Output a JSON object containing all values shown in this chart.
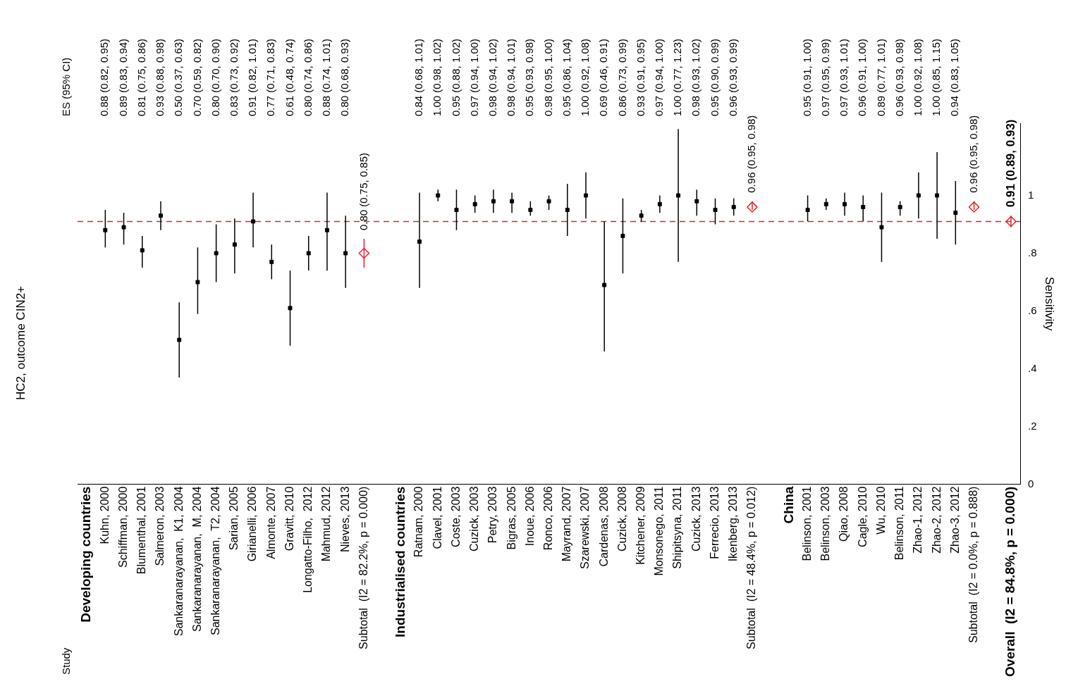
{
  "chart_data": {
    "type": "scatter",
    "title": "HC2, outcome CIN2+",
    "ylabel": "Sensitivity",
    "annotations": [
      "Study",
      "ES (95% CI)"
    ],
    "categories": [
      "Developing countries",
      "Kuhn, 2000",
      "Schiffman, 2000",
      "Blumenthal, 2001",
      "Salmeron, 2003",
      "Sankaranarayanan,  K1, 2004",
      "Sankaranarayanan,  M, 2004",
      "Sankaranarayanan,  T2, 2004",
      "Sarian, 2005",
      "Girianelli, 2006",
      "Almonte, 2007",
      "Gravitt, 2010",
      "Longatto-Filho,  2012",
      "Mahmud, 2012",
      "Nieves, 2013",
      "Subtotal  (I2 = 82.2%, p = 0.000)",
      null,
      "Industrialised countries",
      "Ratnam, 2000",
      "Clavel, 2001",
      "Coste, 2003",
      "Cuzick, 2003",
      "Petry, 2003",
      "Bigras, 2005",
      "Inoue, 2006",
      "Ronco, 2006",
      "Mayrand, 2007",
      "Szarewski, 2007",
      "Cardenas, 2008",
      "Cuzick, 2008",
      "Kitchener, 2009",
      "Monsonego, 2011",
      "Shipitsyna, 2011",
      "Cuzick, 2013",
      "Ferrecio, 2013",
      "Ikenberg, 2013",
      "Subtotal  (I2 = 48.4%, p = 0.012)",
      null,
      "China",
      "Belinson, 2001",
      "Belinson, 2003",
      "Qiao, 2008",
      "Cagle, 2010",
      "Wu, 2010",
      "Belinson, 2011",
      "Zhao-1, 2012",
      "Zhao-2, 2012",
      "Zhao-3, 2012",
      "Subtotal  (I2 = 0.0%, p = 0.888)",
      null,
      "Overall  (I2 = 84.8%, p = 0.000)"
    ],
    "series": [
      {
        "type": "scatter",
        "marker": "square",
        "color": "#000000",
        "values": [
          null,
          0.88,
          0.89,
          0.81,
          0.93,
          0.5,
          0.7,
          0.8,
          0.83,
          0.91,
          0.77,
          0.61,
          0.8,
          0.88,
          0.8,
          null,
          null,
          null,
          0.84,
          1.0,
          0.95,
          0.97,
          0.98,
          0.98,
          0.95,
          0.98,
          0.95,
          1.0,
          0.69,
          0.86,
          0.93,
          0.97,
          1.0,
          0.98,
          0.95,
          0.96,
          null,
          null,
          null,
          0.95,
          0.97,
          0.97,
          0.96,
          0.89,
          0.96,
          1.0,
          1.0,
          0.94,
          null,
          null,
          null
        ],
        "errors": [
          null,
          [
            0.82,
            0.95
          ],
          [
            0.83,
            0.94
          ],
          [
            0.75,
            0.86
          ],
          [
            0.88,
            0.98
          ],
          [
            0.37,
            0.63
          ],
          [
            0.59,
            0.82
          ],
          [
            0.7,
            0.9
          ],
          [
            0.73,
            0.92
          ],
          [
            0.82,
            1.01
          ],
          [
            0.71,
            0.83
          ],
          [
            0.48,
            0.74
          ],
          [
            0.74,
            0.86
          ],
          [
            0.74,
            1.01
          ],
          [
            0.68,
            0.93
          ],
          null,
          null,
          null,
          [
            0.68,
            1.01
          ],
          [
            0.98,
            1.02
          ],
          [
            0.88,
            1.02
          ],
          [
            0.94,
            1.0
          ],
          [
            0.94,
            1.02
          ],
          [
            0.94,
            1.01
          ],
          [
            0.93,
            0.98
          ],
          [
            0.95,
            1.0
          ],
          [
            0.86,
            1.04
          ],
          [
            0.92,
            1.08
          ],
          [
            0.46,
            0.91
          ],
          [
            0.73,
            0.99
          ],
          [
            0.91,
            0.95
          ],
          [
            0.94,
            1.0
          ],
          [
            0.77,
            1.23
          ],
          [
            0.93,
            1.02
          ],
          [
            0.9,
            0.99
          ],
          [
            0.93,
            0.99
          ],
          null,
          null,
          null,
          [
            0.91,
            1.0
          ],
          [
            0.95,
            0.99
          ],
          [
            0.93,
            1.01
          ],
          [
            0.91,
            1.0
          ],
          [
            0.77,
            1.01
          ],
          [
            0.93,
            0.98
          ],
          [
            0.92,
            1.08
          ],
          [
            0.85,
            1.15
          ],
          [
            0.83,
            1.05
          ],
          null,
          null,
          null
        ],
        "value_labels": [
          null,
          "0.88 (0.82, 0.95)",
          "0.89 (0.83, 0.94)",
          "0.81 (0.75, 0.86)",
          "0.93 (0.88, 0.98)",
          "0.50 (0.37, 0.63)",
          "0.70 (0.59, 0.82)",
          "0.80 (0.70, 0.90)",
          "0.83 (0.73, 0.92)",
          "0.91 (0.82, 1.01)",
          "0.77 (0.71, 0.83)",
          "0.61 (0.48, 0.74)",
          "0.80 (0.74, 0.86)",
          "0.88 (0.74, 1.01)",
          "0.80 (0.68, 0.93)",
          null,
          null,
          null,
          "0.84 (0.68, 1.01)",
          "1.00 (0.98, 1.02)",
          "0.95 (0.88, 1.02)",
          "0.97 (0.94, 1.00)",
          "0.98 (0.94, 1.02)",
          "0.98 (0.94, 1.01)",
          "0.95 (0.93, 0.98)",
          "0.98 (0.95, 1.00)",
          "0.95 (0.86, 1.04)",
          "1.00 (0.92, 1.08)",
          "0.69 (0.46, 0.91)",
          "0.86 (0.73, 0.99)",
          "0.93 (0.91, 0.95)",
          "0.97 (0.94, 1.00)",
          "1.00 (0.77, 1.23)",
          "0.98 (0.93, 1.02)",
          "0.95 (0.90, 0.99)",
          "0.96 (0.93, 0.99)",
          null,
          null,
          null,
          "0.95 (0.91, 1.00)",
          "0.97 (0.95, 0.99)",
          "0.97 (0.93, 1.01)",
          "0.96 (0.91, 1.00)",
          "0.89 (0.77, 1.01)",
          "0.96 (0.93, 0.98)",
          "1.00 (0.92, 1.08)",
          "1.00 (0.85, 1.15)",
          "0.94 (0.83, 1.05)",
          null,
          null,
          null
        ]
      },
      {
        "type": "scatter",
        "marker": "diamond",
        "color": "#e8202a",
        "values": [
          null,
          null,
          null,
          null,
          null,
          null,
          null,
          null,
          null,
          null,
          null,
          null,
          null,
          null,
          null,
          0.8,
          null,
          null,
          null,
          null,
          null,
          null,
          null,
          null,
          null,
          null,
          null,
          null,
          null,
          null,
          null,
          null,
          null,
          null,
          null,
          null,
          0.96,
          null,
          null,
          null,
          null,
          null,
          null,
          null,
          null,
          null,
          null,
          null,
          0.96,
          null,
          null
        ],
        "errors": [
          null,
          null,
          null,
          null,
          null,
          null,
          null,
          null,
          null,
          null,
          null,
          null,
          null,
          null,
          null,
          [
            0.75,
            0.85
          ],
          null,
          null,
          null,
          null,
          null,
          null,
          null,
          null,
          null,
          null,
          null,
          null,
          null,
          null,
          null,
          null,
          null,
          null,
          null,
          null,
          [
            0.95,
            0.98
          ],
          null,
          null,
          null,
          null,
          null,
          null,
          null,
          null,
          null,
          null,
          null,
          [
            0.95,
            0.98
          ],
          null,
          null
        ],
        "value_labels": [
          null,
          null,
          null,
          null,
          null,
          null,
          null,
          null,
          null,
          null,
          null,
          null,
          null,
          null,
          null,
          "0.80 (0.75, 0.85)",
          null,
          null,
          null,
          null,
          null,
          null,
          null,
          null,
          null,
          null,
          null,
          null,
          null,
          null,
          null,
          null,
          null,
          null,
          null,
          null,
          "0.96 (0.95, 0.98)",
          null,
          null,
          null,
          null,
          null,
          null,
          null,
          null,
          null,
          null,
          null,
          "0.96 (0.95, 0.98)",
          null,
          null
        ]
      },
      {
        "type": "scatter",
        "marker": "diamond",
        "color": "#e8202a",
        "values": [
          null,
          null,
          null,
          null,
          null,
          null,
          null,
          null,
          null,
          null,
          null,
          null,
          null,
          null,
          null,
          null,
          null,
          null,
          null,
          null,
          null,
          null,
          null,
          null,
          null,
          null,
          null,
          null,
          null,
          null,
          null,
          null,
          null,
          null,
          null,
          null,
          null,
          null,
          null,
          null,
          null,
          null,
          null,
          null,
          null,
          null,
          null,
          null,
          null,
          null,
          0.91
        ],
        "errors": [
          null,
          null,
          null,
          null,
          null,
          null,
          null,
          null,
          null,
          null,
          null,
          null,
          null,
          null,
          null,
          null,
          null,
          null,
          null,
          null,
          null,
          null,
          null,
          null,
          null,
          null,
          null,
          null,
          null,
          null,
          null,
          null,
          null,
          null,
          null,
          null,
          null,
          null,
          null,
          null,
          null,
          null,
          null,
          null,
          null,
          null,
          null,
          null,
          null,
          null,
          [
            0.89,
            0.93
          ]
        ],
        "value_labels": [
          null,
          null,
          null,
          null,
          null,
          null,
          null,
          null,
          null,
          null,
          null,
          null,
          null,
          null,
          null,
          null,
          null,
          null,
          null,
          null,
          null,
          null,
          null,
          null,
          null,
          null,
          null,
          null,
          null,
          null,
          null,
          null,
          null,
          null,
          null,
          null,
          null,
          null,
          null,
          null,
          null,
          null,
          null,
          null,
          null,
          null,
          null,
          null,
          null,
          null,
          "0.91 (0.89, 0.93)"
        ]
      }
    ],
    "ylim": [
      0,
      1.25
    ],
    "yticks": [
      {
        "value": 0,
        "label": "0"
      },
      {
        "value": 0.2,
        "label": ".2"
      },
      {
        "value": 0.4,
        "label": ".4"
      },
      {
        "value": 0.6,
        "label": ".6"
      },
      {
        "value": 0.8,
        "label": ".8"
      },
      {
        "value": 1,
        "label": "1"
      }
    ],
    "ref_lines": [
      {
        "axis": "y",
        "value": 0.91,
        "color": "#e8202a",
        "line_style": "dashed"
      }
    ],
    "grid": false,
    "legend": false
  }
}
